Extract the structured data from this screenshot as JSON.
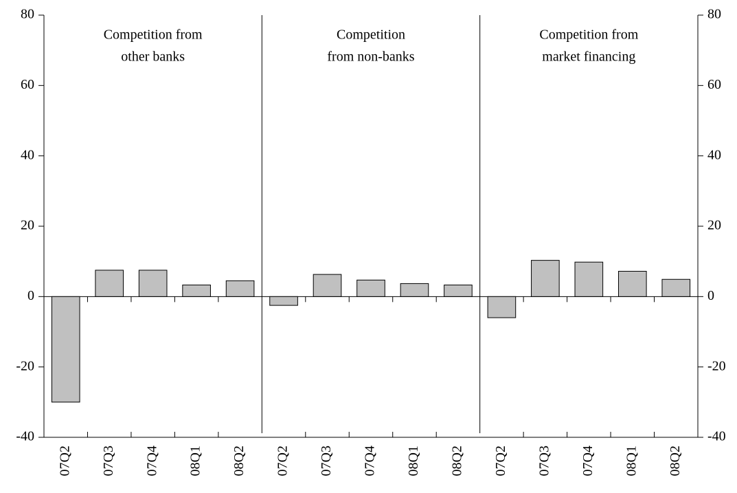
{
  "chart_data": {
    "type": "bar",
    "color": "#c0c0c0",
    "panels": [
      {
        "title": [
          "Competition from",
          "other banks"
        ],
        "categories": [
          "07Q2",
          "07Q3",
          "07Q4",
          "08Q1",
          "08Q2"
        ],
        "values": [
          -30,
          7.5,
          7.5,
          3.3,
          4.5
        ]
      },
      {
        "title": [
          "Competition",
          "from non-banks"
        ],
        "categories": [
          "07Q2",
          "07Q3",
          "07Q4",
          "08Q1",
          "08Q2"
        ],
        "values": [
          -2.5,
          6.3,
          4.7,
          3.7,
          3.3
        ]
      },
      {
        "title": [
          "Competition from",
          "market financing"
        ],
        "categories": [
          "07Q2",
          "07Q3",
          "07Q4",
          "08Q1",
          "08Q2"
        ],
        "values": [
          -6,
          10.3,
          9.8,
          7.2,
          4.9
        ]
      }
    ],
    "ylim": [
      -40,
      80
    ],
    "yticks": [
      -40,
      -20,
      0,
      20,
      40,
      60,
      80
    ]
  }
}
